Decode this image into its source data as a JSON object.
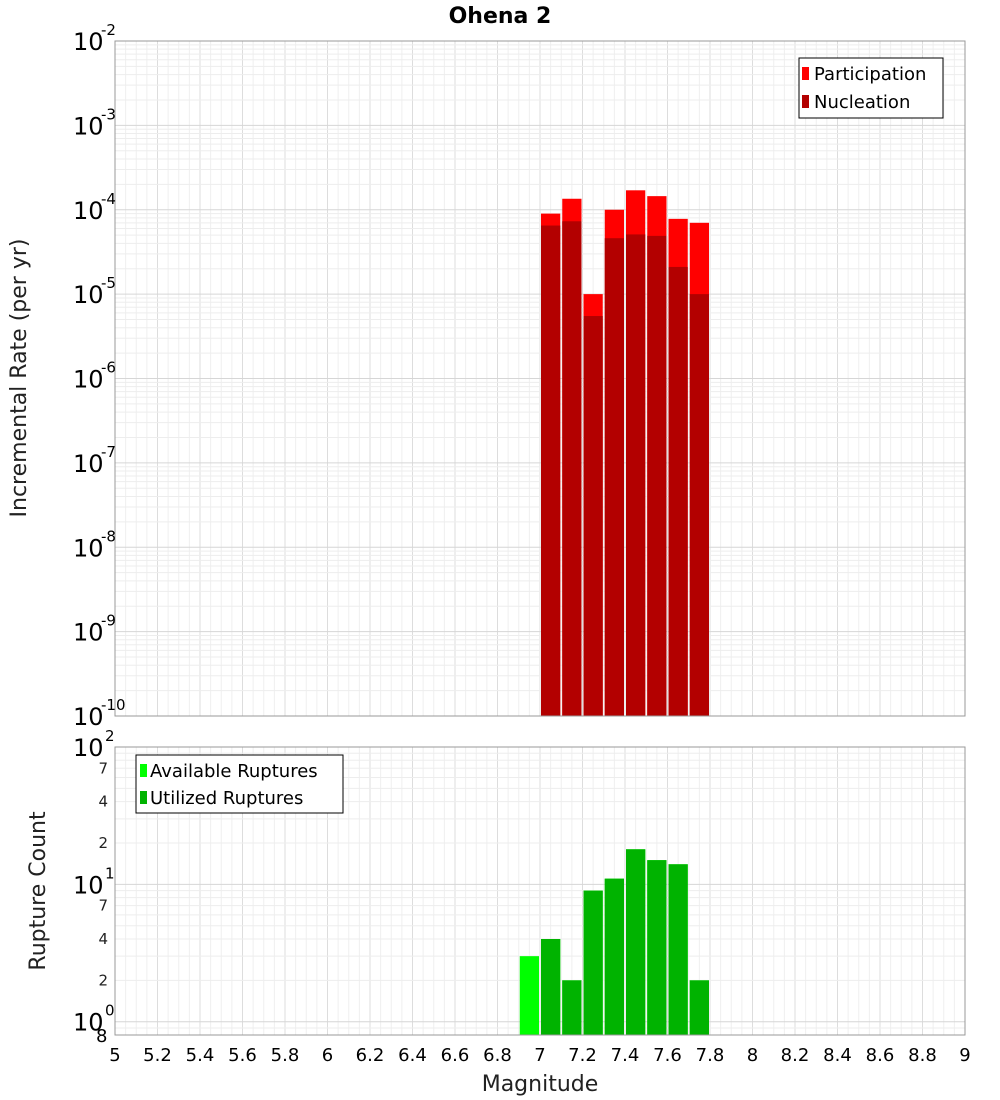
{
  "chart_data": [
    {
      "type": "bar",
      "title": "Ohena 2",
      "xlabel": "Magnitude",
      "ylabel": "Incremental Rate (per yr)",
      "yscale": "log",
      "ylim": [
        1e-10,
        0.01
      ],
      "xlim": [
        5,
        9
      ],
      "ytick_decades": [
        -10,
        -9,
        -8,
        -7,
        -6,
        -5,
        -4,
        -3,
        -2
      ],
      "legend": [
        {
          "label": "Participation",
          "color": "#ff0000"
        },
        {
          "label": "Nucleation",
          "color": "#b30000"
        }
      ],
      "legend_position": "top-right",
      "x": [
        7.05,
        7.15,
        7.25,
        7.35,
        7.45,
        7.55,
        7.65,
        7.75
      ],
      "series": [
        {
          "name": "Participation",
          "color": "#ff0000",
          "values": [
            9e-05,
            0.000135,
            1e-05,
            0.0001,
            0.00017,
            0.000145,
            7.8e-05,
            7e-05
          ]
        },
        {
          "name": "Nucleation",
          "color": "#b30000",
          "values": [
            6.5e-05,
            7.3e-05,
            5.5e-06,
            4.6e-05,
            5.1e-05,
            4.9e-05,
            2.1e-05,
            1e-05
          ]
        }
      ]
    },
    {
      "type": "bar",
      "title": "",
      "xlabel": "Magnitude",
      "ylabel": "Rupture Count",
      "yscale": "log",
      "ylim": [
        0.8,
        100
      ],
      "xlim": [
        5,
        9
      ],
      "ytick_decades": [
        0,
        1,
        2
      ],
      "minor_ticks": [
        {
          "value": 2,
          "label": "2"
        },
        {
          "value": 4,
          "label": "4"
        },
        {
          "value": 7,
          "label": "7"
        },
        {
          "value": 20,
          "label": "2"
        },
        {
          "value": 40,
          "label": "4"
        },
        {
          "value": 70,
          "label": "7"
        }
      ],
      "bottom_edge_label": "8",
      "legend": [
        {
          "label": "Available Ruptures",
          "color": "#00ff00"
        },
        {
          "label": "Utilized Ruptures",
          "color": "#00b300"
        }
      ],
      "legend_position": "top-left",
      "x": [
        6.95,
        7.05,
        7.15,
        7.25,
        7.35,
        7.45,
        7.55,
        7.65,
        7.75
      ],
      "series": [
        {
          "name": "Available Ruptures",
          "color": "#00ff00",
          "values": [
            3,
            4,
            2,
            9,
            11,
            18,
            15,
            14,
            2
          ]
        },
        {
          "name": "Utilized Ruptures",
          "color": "#00b300",
          "values": [
            0,
            4,
            2,
            9,
            11,
            18,
            15,
            14,
            2
          ]
        }
      ]
    }
  ],
  "x_ticks": [
    "5",
    "5.2",
    "5.4",
    "5.6",
    "5.8",
    "6",
    "6.2",
    "6.4",
    "6.6",
    "6.8",
    "7",
    "7.2",
    "7.4",
    "7.6",
    "7.8",
    "8",
    "8.2",
    "8.4",
    "8.6",
    "8.8",
    "9"
  ],
  "x_tick_values": [
    5,
    5.2,
    5.4,
    5.6,
    5.8,
    6,
    6.2,
    6.4,
    6.6,
    6.8,
    7,
    7.2,
    7.4,
    7.6,
    7.8,
    8,
    8.2,
    8.4,
    8.6,
    8.8,
    9
  ],
  "bar_width": 0.1
}
